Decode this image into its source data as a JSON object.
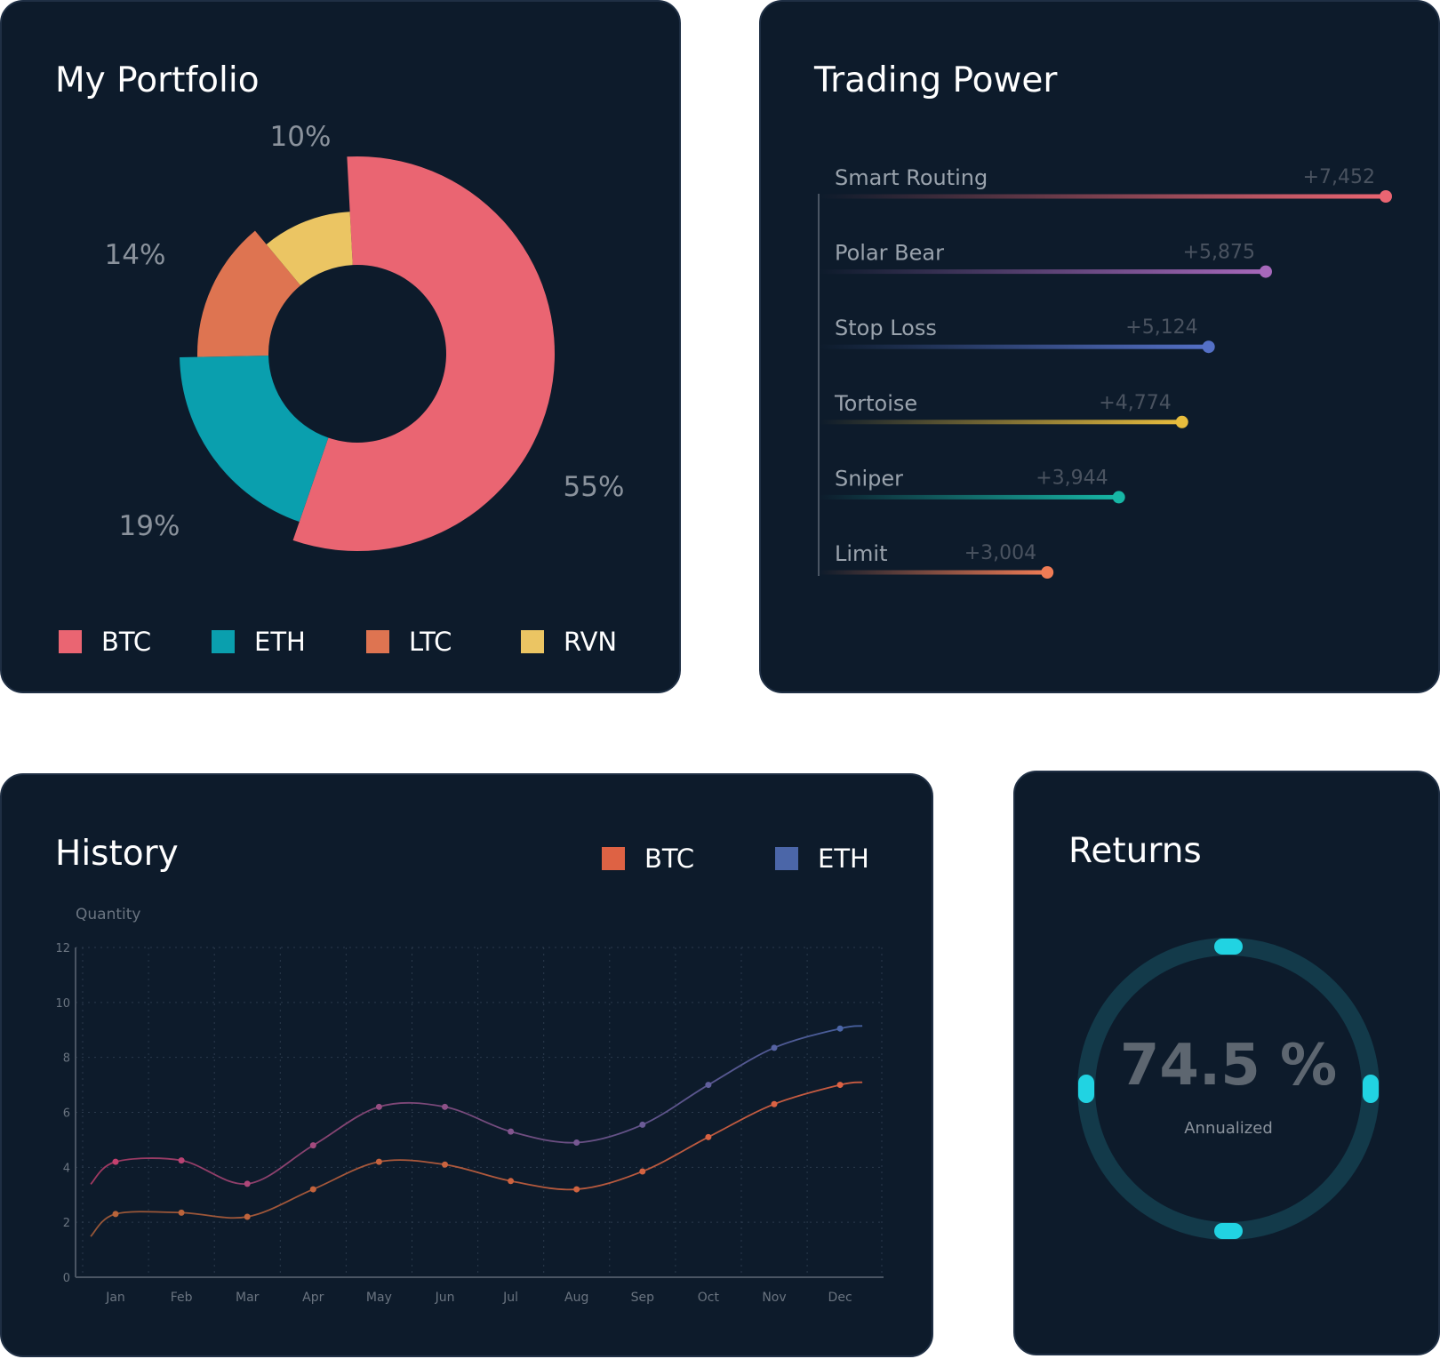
{
  "colors": {
    "card_bg": "#0d1b2b",
    "border": "#1f2f44"
  },
  "portfolio": {
    "title": "My Portfolio",
    "legend": [
      {
        "label": "BTC",
        "color": "#ea6572"
      },
      {
        "label": "ETH",
        "color": "#0a9fae"
      },
      {
        "label": "LTC",
        "color": "#de7451"
      },
      {
        "label": "RVN",
        "color": "#ebc563"
      }
    ]
  },
  "trading": {
    "title": "Trading Power"
  },
  "history": {
    "title": "History",
    "legend": [
      {
        "label": "BTC",
        "color": "#de6244"
      },
      {
        "label": "ETH",
        "color": "#4b66a8"
      }
    ]
  },
  "returns": {
    "title": "Returns",
    "value": "74.5 %",
    "caption": "Annualized",
    "ring_color": "#133a4a",
    "handle_color": "#21d3e2"
  },
  "chart_data": [
    {
      "type": "pie",
      "variant": "donut-variable-radius",
      "labels": [
        "BTC",
        "ETH",
        "LTC",
        "RVN"
      ],
      "values": [
        55,
        19,
        14,
        10
      ],
      "value_labels": [
        "55%",
        "19%",
        "14%",
        "10%"
      ],
      "colors": [
        "#ea6572",
        "#0a9fae",
        "#de7451",
        "#ebc563"
      ]
    },
    {
      "type": "bar",
      "orientation": "horizontal",
      "categories": [
        "Smart Routing",
        "Polar Bear",
        "Stop Loss",
        "Tortoise",
        "Sniper",
        "Limit"
      ],
      "values": [
        7452,
        5875,
        5124,
        4774,
        3944,
        3004
      ],
      "value_labels": [
        "+7,452",
        "+5,875",
        "+5,124",
        "+4,774",
        "+3,944",
        "+3,004"
      ],
      "colors": [
        "#ea6572",
        "#a668bb",
        "#5470c6",
        "#e8bd3d",
        "#17b7a6",
        "#f07c55"
      ]
    },
    {
      "type": "line",
      "x": [
        "Jan",
        "Feb",
        "Mar",
        "Apr",
        "May",
        "Jun",
        "Jul",
        "Aug",
        "Sep",
        "Oct",
        "Nov",
        "Dec"
      ],
      "series": [
        {
          "name": "BTC",
          "color": "#de6244",
          "values": [
            2.3,
            2.35,
            2.2,
            3.2,
            4.2,
            4.1,
            3.5,
            3.2,
            3.85,
            5.1,
            6.3,
            7.0
          ]
        },
        {
          "name": "ETH",
          "color": "#4b66a8",
          "values": [
            4.2,
            4.25,
            3.4,
            4.8,
            6.2,
            6.2,
            5.3,
            4.9,
            5.55,
            7.0,
            8.35,
            9.05
          ]
        }
      ],
      "ylabel": "Quantity",
      "ylim": [
        0,
        12
      ],
      "yticks": [
        0,
        2,
        4,
        6,
        8,
        10,
        12
      ],
      "grid": true
    }
  ]
}
